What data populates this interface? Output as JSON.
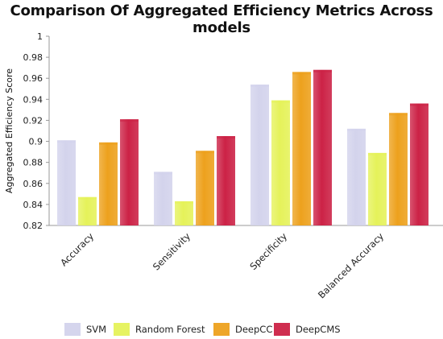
{
  "chart_data": {
    "type": "bar",
    "title": "Comparison Of Aggregated Efficiency Metrics Across models",
    "xlabel": "",
    "ylabel": "Aggregated Efficiency Score",
    "ylim": [
      0.82,
      1.0
    ],
    "yticks": [
      "0.82",
      "0.84",
      "0.86",
      "0.88",
      "0.9",
      "0.92",
      "0.94",
      "0.96",
      "0.98",
      "1"
    ],
    "categories": [
      "Accuracy",
      "Sensitivity",
      "Specificity",
      "Balanced Accuracy"
    ],
    "series": [
      {
        "name": "SVM",
        "values": [
          0.901,
          0.871,
          0.954,
          0.912
        ],
        "color": "#d3d3ec"
      },
      {
        "name": "Random Forest",
        "values": [
          0.847,
          0.843,
          0.939,
          0.889
        ],
        "color": "#e5f25a"
      },
      {
        "name": "DeepCC",
        "values": [
          0.899,
          0.891,
          0.966,
          0.927
        ],
        "color": "#eda11d"
      },
      {
        "name": "DeepCMS",
        "values": [
          0.921,
          0.905,
          0.968,
          0.936
        ],
        "color": "#cc2246"
      }
    ],
    "grid": false,
    "legend": "bottom"
  }
}
